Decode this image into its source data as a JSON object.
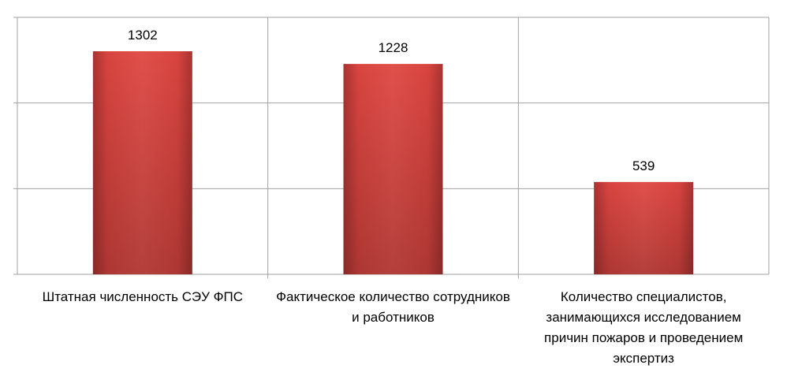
{
  "chart_data": {
    "type": "bar",
    "categories": [
      "Штатная численность СЭУ ФПС",
      "Фактическое количество сотрудников и работников",
      "Количество специалистов, занимающихся исследованием причин пожаров и проведением экспертиз"
    ],
    "values": [
      1302,
      1228,
      539
    ],
    "color": "#d9433f",
    "ylim": [
      0,
      1500
    ],
    "yticks": [
      0,
      500,
      1000,
      1500
    ],
    "grid": true
  }
}
